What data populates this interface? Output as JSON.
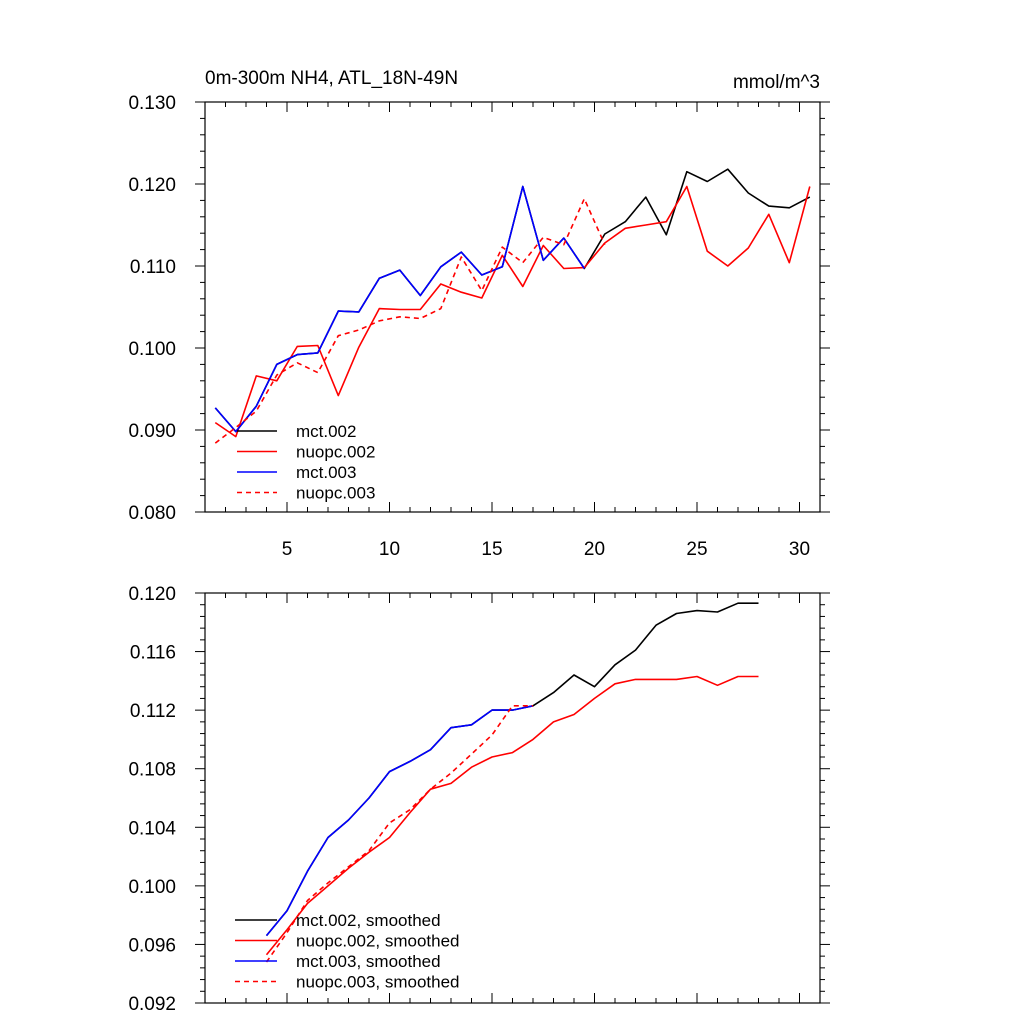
{
  "chart_data": [
    {
      "type": "line",
      "title": "0m-300m NH4, ATL_18N-49N",
      "units": "mmol/m^3",
      "xlim": [
        1,
        31
      ],
      "ylim": [
        0.08,
        0.13
      ],
      "xticks": [
        5,
        10,
        15,
        20,
        25,
        30
      ],
      "xtick_labels": [
        "5",
        "10",
        "15",
        "20",
        "25",
        "30"
      ],
      "yticks": [
        0.08,
        0.09,
        0.1,
        0.11,
        0.12,
        0.13
      ],
      "ytick_labels": [
        "0.080",
        "0.090",
        "0.100",
        "0.110",
        "0.120",
        "0.130"
      ],
      "legend_position": "bottom-left",
      "series": [
        {
          "name": "mct.002",
          "color": "#000000",
          "dash": "solid",
          "x": [
            1.5,
            2.5,
            3.5,
            4.5,
            5.5,
            6.5,
            7.5,
            8.5,
            9.5,
            10.5,
            11.5,
            12.5,
            13.5,
            14.5,
            15.5,
            16.5,
            17.5,
            18.5,
            19.5,
            20.5,
            21.5,
            22.5,
            23.5,
            24.5,
            25.5,
            26.5,
            27.5,
            28.5,
            29.5,
            30.5
          ],
          "values": [
            0.0927,
            0.0898,
            0.0929,
            0.098,
            0.0992,
            0.0994,
            0.1045,
            0.1044,
            0.1085,
            0.1095,
            0.1064,
            0.1099,
            0.1117,
            0.1089,
            0.1099,
            0.1197,
            0.1107,
            0.1134,
            0.1097,
            0.1139,
            0.1154,
            0.1184,
            0.1138,
            0.1215,
            0.1203,
            0.1218,
            0.1189,
            0.1173,
            0.1171,
            0.1184
          ]
        },
        {
          "name": "nuopc.002",
          "color": "#ff0000",
          "dash": "solid",
          "x": [
            1.5,
            2.5,
            3.5,
            4.5,
            5.5,
            6.5,
            7.5,
            8.5,
            9.5,
            10.5,
            11.5,
            12.5,
            13.5,
            14.5,
            15.5,
            16.5,
            17.5,
            18.5,
            19.5,
            20.5,
            21.5,
            22.5,
            23.5,
            24.5,
            25.5,
            26.5,
            27.5,
            28.5,
            29.5,
            30.5
          ],
          "values": [
            0.0909,
            0.0892,
            0.0966,
            0.096,
            0.1002,
            0.1003,
            0.0942,
            0.1001,
            0.1048,
            0.1047,
            0.1047,
            0.1078,
            0.1068,
            0.1061,
            0.1113,
            0.1075,
            0.1125,
            0.1097,
            0.1098,
            0.1128,
            0.1146,
            0.115,
            0.1154,
            0.1197,
            0.1118,
            0.11,
            0.1122,
            0.1163,
            0.1104,
            0.1197
          ]
        },
        {
          "name": "mct.003",
          "color": "#0000ff",
          "dash": "solid",
          "x": [
            1.5,
            2.5,
            3.5,
            4.5,
            5.5,
            6.5,
            7.5,
            8.5,
            9.5,
            10.5,
            11.5,
            12.5,
            13.5,
            14.5,
            15.5,
            16.5,
            17.5,
            18.5,
            19.5
          ],
          "values": [
            0.0927,
            0.0898,
            0.0929,
            0.098,
            0.0992,
            0.0994,
            0.1045,
            0.1044,
            0.1085,
            0.1095,
            0.1064,
            0.1099,
            0.1117,
            0.1089,
            0.1099,
            0.1197,
            0.1107,
            0.1134,
            0.1097
          ]
        },
        {
          "name": "nuopc.003",
          "color": "#ff0000",
          "dash": "dashed",
          "x": [
            1.5,
            2.5,
            3.5,
            4.5,
            5.5,
            6.5,
            7.5,
            8.5,
            9.5,
            10.5,
            11.5,
            12.5,
            13.5,
            14.5,
            15.5,
            16.5,
            17.5,
            18.5,
            19.5,
            20.5
          ],
          "values": [
            0.0884,
            0.0903,
            0.0923,
            0.0967,
            0.0982,
            0.097,
            0.1015,
            0.1022,
            0.1033,
            0.1038,
            0.1036,
            0.1048,
            0.1111,
            0.107,
            0.1123,
            0.1104,
            0.1135,
            0.1126,
            0.1182,
            0.1126
          ]
        }
      ]
    },
    {
      "type": "line",
      "title": "",
      "xlim": [
        1,
        31
      ],
      "ylim": [
        0.092,
        0.12
      ],
      "xticks": [
        5,
        10,
        15,
        20,
        25,
        30
      ],
      "yticks": [
        0.092,
        0.096,
        0.1,
        0.104,
        0.108,
        0.112,
        0.116,
        0.12
      ],
      "ytick_labels": [
        "0.092",
        "0.096",
        "0.100",
        "0.104",
        "0.108",
        "0.112",
        "0.116",
        "0.120"
      ],
      "legend_position": "bottom-left",
      "series": [
        {
          "name": "mct.002, smoothed",
          "color": "#000000",
          "dash": "solid",
          "x": [
            4,
            5,
            6,
            7,
            8,
            9,
            10,
            11,
            12,
            13,
            14,
            15,
            16,
            17,
            18,
            19,
            20,
            21,
            22,
            23,
            24,
            25,
            26,
            27,
            28
          ],
          "values": [
            0.0966,
            0.0983,
            0.101,
            0.1033,
            0.1045,
            0.106,
            0.1078,
            0.1085,
            0.1093,
            0.1108,
            0.111,
            0.112,
            0.112,
            0.1123,
            0.1132,
            0.1144,
            0.1136,
            0.1151,
            0.1161,
            0.1178,
            0.1186,
            0.1188,
            0.1187,
            0.1193,
            0.1193
          ]
        },
        {
          "name": "nuopc.002, smoothed",
          "color": "#ff0000",
          "dash": "solid",
          "x": [
            4,
            5,
            6,
            7,
            8,
            9,
            10,
            11,
            12,
            13,
            14,
            15,
            16,
            17,
            18,
            19,
            20,
            21,
            22,
            23,
            24,
            25,
            26,
            27,
            28
          ],
          "values": [
            0.0953,
            0.097,
            0.0988,
            0.1,
            0.1012,
            0.1023,
            0.1033,
            0.105,
            0.1066,
            0.107,
            0.1081,
            0.1088,
            0.1091,
            0.11,
            0.1112,
            0.1117,
            0.1128,
            0.1138,
            0.1141,
            0.1141,
            0.1141,
            0.1143,
            0.1137,
            0.1143,
            0.1143
          ]
        },
        {
          "name": "mct.003, smoothed",
          "color": "#0000ff",
          "dash": "solid",
          "x": [
            4,
            5,
            6,
            7,
            8,
            9,
            10,
            11,
            12,
            13,
            14,
            15,
            16,
            17
          ],
          "values": [
            0.0966,
            0.0983,
            0.101,
            0.1033,
            0.1045,
            0.106,
            0.1078,
            0.1085,
            0.1093,
            0.1108,
            0.111,
            0.112,
            0.112,
            0.1123
          ]
        },
        {
          "name": "nuopc.003, smoothed",
          "color": "#ff0000",
          "dash": "dashed",
          "x": [
            4,
            5,
            6,
            7,
            8,
            9,
            10,
            11,
            12,
            13,
            14,
            15,
            16,
            17
          ],
          "values": [
            0.0948,
            0.0968,
            0.099,
            0.1002,
            0.1013,
            0.1024,
            0.1043,
            0.1052,
            0.1066,
            0.1077,
            0.109,
            0.1103,
            0.1123,
            0.1123
          ]
        }
      ]
    }
  ]
}
